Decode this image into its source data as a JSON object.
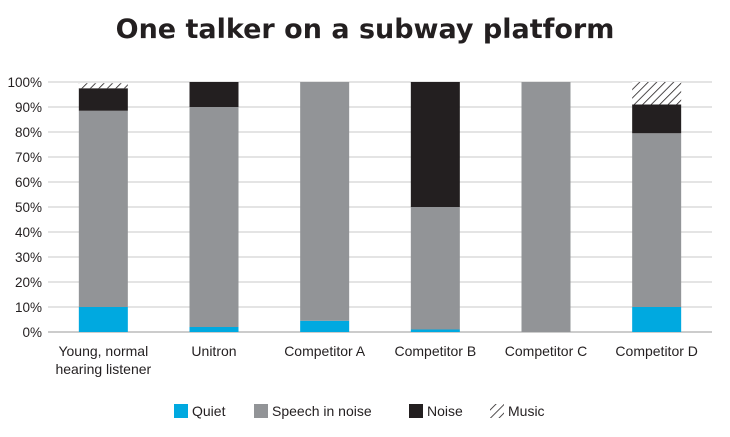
{
  "chart_data": {
    "type": "bar",
    "stacked": true,
    "title": "One talker on a subway platform",
    "xlabel": "",
    "ylabel": "",
    "ylim": [
      0,
      100
    ],
    "y_ticks": [
      "0%",
      "10%",
      "20%",
      "30%",
      "40%",
      "50%",
      "60%",
      "70%",
      "80%",
      "90%",
      "100%"
    ],
    "y_tick_values": [
      0,
      10,
      20,
      30,
      40,
      50,
      60,
      70,
      80,
      90,
      100
    ],
    "grid": true,
    "legend_position": "bottom",
    "categories": [
      [
        "Young, normal",
        "hearing listener"
      ],
      [
        "Unitron"
      ],
      [
        "Competitor A"
      ],
      [
        "Competitor B"
      ],
      [
        "Competitor C"
      ],
      [
        "Competitor D"
      ]
    ],
    "series": [
      {
        "name": "Quiet",
        "color": "#00a9e0",
        "pattern": "solid",
        "values": [
          10,
          2,
          4.5,
          1,
          0,
          10
        ]
      },
      {
        "name": "Speech in noise",
        "color": "#929497",
        "pattern": "solid",
        "values": [
          78.5,
          88,
          95.5,
          49,
          100,
          69.5
        ]
      },
      {
        "name": "Noise",
        "color": "#231f20",
        "pattern": "solid",
        "values": [
          9,
          10,
          0,
          50,
          0,
          11.5
        ]
      },
      {
        "name": "Music",
        "color": "#231f20",
        "pattern": "hatch",
        "values": [
          2,
          0,
          0,
          0,
          0,
          9
        ]
      }
    ]
  }
}
